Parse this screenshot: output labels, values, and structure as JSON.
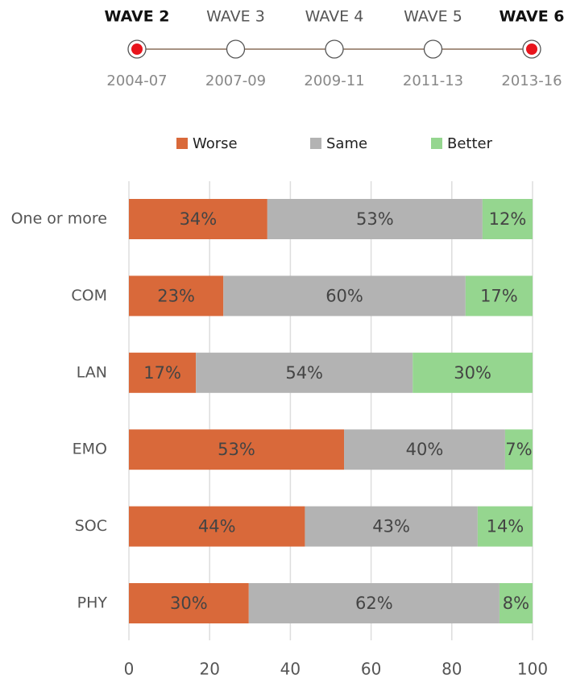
{
  "wave_selector": [
    {
      "label": "WAVE 2",
      "dates": "2004-07",
      "selected": true
    },
    {
      "label": "WAVE 3",
      "dates": "2007-09",
      "selected": false
    },
    {
      "label": "WAVE 4",
      "dates": "2009-11",
      "selected": false
    },
    {
      "label": "WAVE 5",
      "dates": "2011-13",
      "selected": false
    },
    {
      "label": "WAVE 6",
      "dates": "2013-16",
      "selected": true
    }
  ],
  "chart_data": {
    "type": "stacked-barh",
    "categories": [
      "One or more",
      "COM",
      "LAN",
      "EMO",
      "SOC",
      "PHY"
    ],
    "series": [
      {
        "name": "Worse",
        "color": "#d9693a",
        "values": [
          34.3,
          23.4,
          16.6,
          53.3,
          43.6,
          29.7
        ],
        "value_labels": [
          "34%",
          "23%",
          "17%",
          "53%",
          "44%",
          "30%"
        ]
      },
      {
        "name": "Same",
        "color": "#b3b3b3",
        "values": [
          53.3,
          60.0,
          53.7,
          39.9,
          42.8,
          62.1
        ],
        "value_labels": [
          "53%",
          "60%",
          "54%",
          "40%",
          "43%",
          "62%"
        ]
      },
      {
        "name": "Better",
        "color": "#95d68f",
        "values": [
          12.4,
          16.6,
          29.7,
          6.8,
          13.6,
          8.2
        ],
        "value_labels": [
          "12%",
          "17%",
          "30%",
          "7%",
          "14%",
          "8%"
        ]
      }
    ],
    "xlim": [
      0,
      100
    ],
    "xticks": [
      0,
      20,
      40,
      60,
      80,
      100
    ],
    "grid": true,
    "legend": "top"
  }
}
